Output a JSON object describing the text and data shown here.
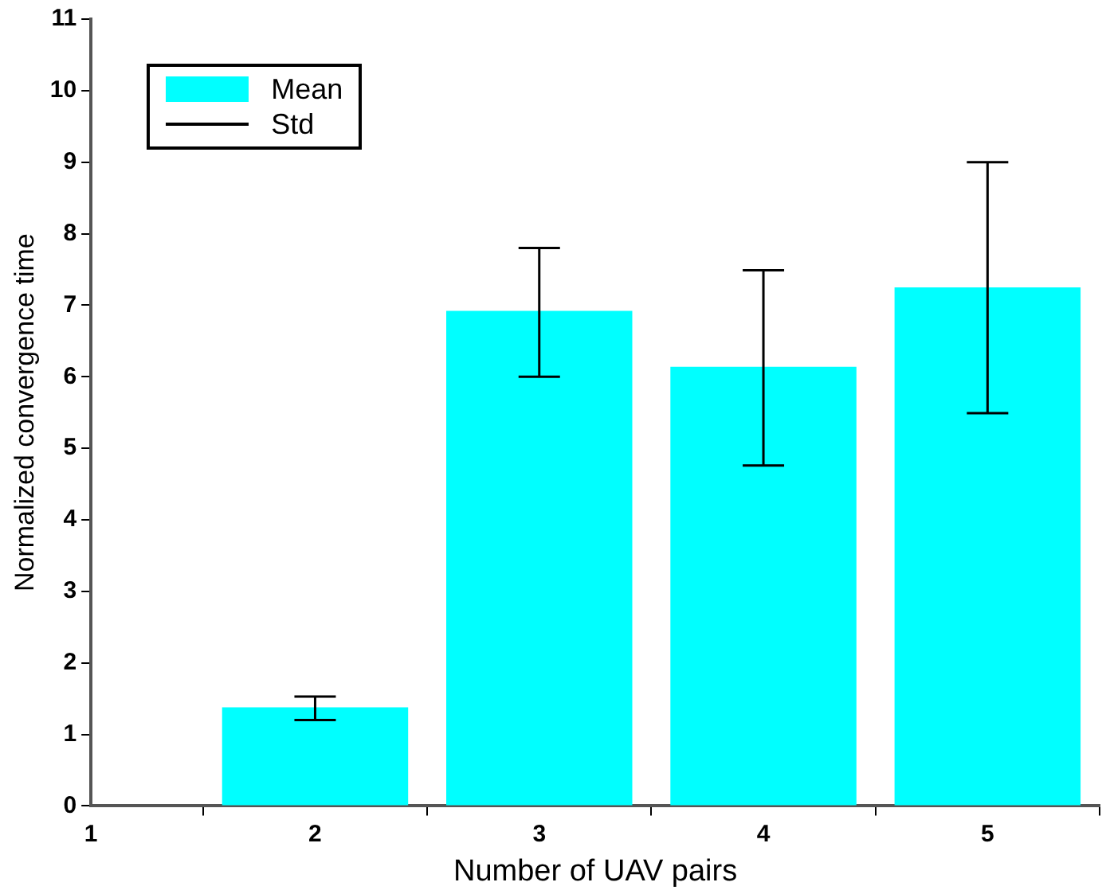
{
  "chart_data": {
    "type": "bar",
    "xlabel": "Number of UAV pairs",
    "ylabel": "Normalized convergence time",
    "x": [
      2,
      3,
      4,
      5
    ],
    "series": [
      {
        "name": "Mean",
        "color": "#00ffff",
        "values": [
          1.38,
          6.92,
          6.14,
          7.25
        ],
        "errors": [
          [
            1.2,
            1.53
          ],
          [
            6.0,
            7.8
          ],
          [
            4.76,
            7.49
          ],
          [
            5.49,
            9.0
          ]
        ]
      }
    ],
    "annotations": [
      "Std"
    ],
    "xlim": [
      1,
      5.5
    ],
    "xticks": [
      1,
      2,
      3,
      4,
      5
    ],
    "ylim": [
      0,
      11
    ],
    "yticks": [
      0,
      1,
      2,
      3,
      4,
      5,
      6,
      7,
      8,
      9,
      10,
      11
    ],
    "legend": "top left",
    "grid": false
  }
}
